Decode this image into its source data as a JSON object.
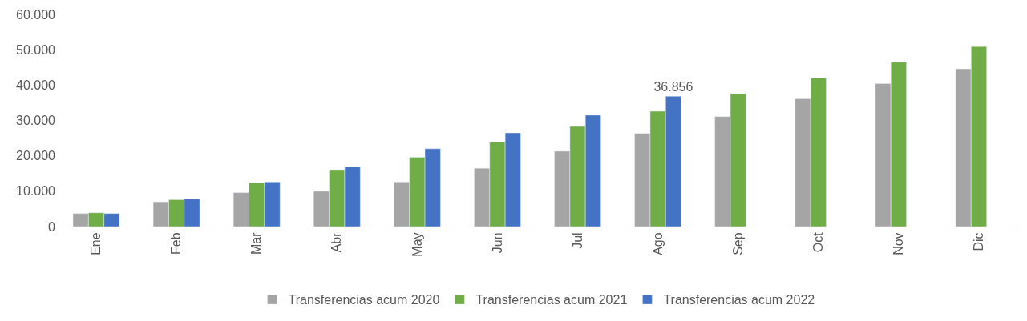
{
  "chart_data": {
    "type": "bar",
    "categories": [
      "Ene",
      "Feb",
      "Mar",
      "Abr",
      "May",
      "Jun",
      "Jul",
      "Ago",
      "Sep",
      "Oct",
      "Nov",
      "Dic"
    ],
    "series": [
      {
        "name": "Transferencias acum 2020",
        "color": "#a5a5a5",
        "values": [
          3700,
          7000,
          9600,
          10000,
          12600,
          16500,
          21300,
          26300,
          31100,
          36100,
          40400,
          44600
        ]
      },
      {
        "name": "Transferencias acum 2021",
        "color": "#70ad47",
        "values": [
          3900,
          7600,
          12400,
          16100,
          19600,
          23900,
          28300,
          32600,
          37600,
          42000,
          46500,
          50900
        ]
      },
      {
        "name": "Transferencias acum 2022",
        "color": "#4472c4",
        "values": [
          3700,
          7800,
          12600,
          17000,
          22000,
          26500,
          31500,
          36856,
          null,
          null,
          null,
          null
        ],
        "value_labels": [
          null,
          null,
          null,
          null,
          null,
          null,
          null,
          "36.856",
          null,
          null,
          null,
          null
        ]
      }
    ],
    "ylim": [
      0,
      60000
    ],
    "yticks": [
      {
        "value": 0,
        "label": "0"
      },
      {
        "value": 10000,
        "label": "10.000"
      },
      {
        "value": 20000,
        "label": "20.000"
      },
      {
        "value": 30000,
        "label": "30.000"
      },
      {
        "value": 40000,
        "label": "40.000"
      },
      {
        "value": 50000,
        "label": "50.000"
      },
      {
        "value": 60000,
        "label": "60.000"
      }
    ],
    "grid": false,
    "legend": "bottom"
  }
}
